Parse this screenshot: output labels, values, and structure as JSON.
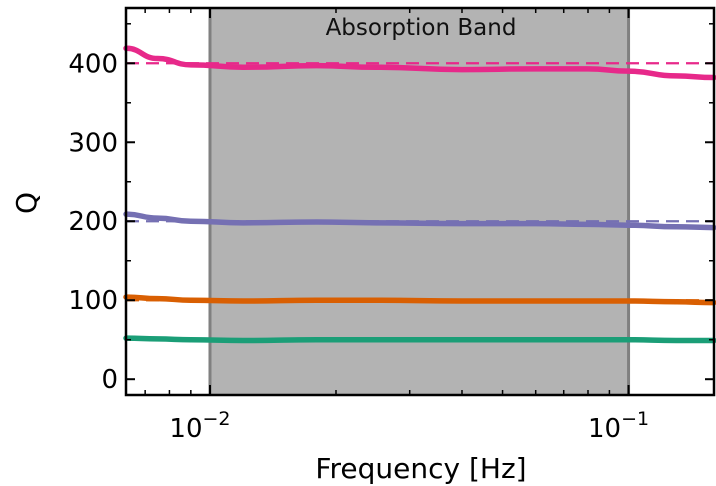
{
  "chart_data": {
    "type": "line",
    "title": "",
    "xlabel": "Frequency [Hz]",
    "ylabel": "Q",
    "xscale": "log",
    "xlim": [
      0.0063,
      0.16
    ],
    "ylim": [
      -20,
      470
    ],
    "xticks": [
      {
        "value": 0.01,
        "base": "10",
        "exp": "−2"
      },
      {
        "value": 0.1,
        "base": "10",
        "exp": "−1"
      }
    ],
    "yticks": [
      {
        "value": 0,
        "label": "0"
      },
      {
        "value": 100,
        "label": "100"
      },
      {
        "value": 200,
        "label": "200"
      },
      {
        "value": 300,
        "label": "300"
      },
      {
        "value": 400,
        "label": "400"
      }
    ],
    "band": {
      "x_start": 0.01,
      "x_end": 0.1,
      "label": "Absorption Band",
      "color": "#b3b3b3"
    },
    "grid": false,
    "series": [
      {
        "color": "#e7298a",
        "target_q": 400,
        "x": [
          0.0063,
          0.0075,
          0.009,
          0.012,
          0.018,
          0.025,
          0.04,
          0.06,
          0.08,
          0.1,
          0.13,
          0.16
        ],
        "values": [
          419,
          406,
          398,
          395,
          397,
          395,
          392,
          393,
          393,
          390,
          384,
          382
        ]
      },
      {
        "color": "#7570b3",
        "target_q": 200,
        "x": [
          0.0063,
          0.0075,
          0.009,
          0.012,
          0.018,
          0.025,
          0.04,
          0.06,
          0.08,
          0.1,
          0.13,
          0.16
        ],
        "values": [
          209,
          204,
          200,
          198,
          199,
          198,
          197,
          197,
          196,
          195,
          193,
          192
        ]
      },
      {
        "color": "#d95f02",
        "target_q": 100,
        "x": [
          0.0063,
          0.0075,
          0.009,
          0.012,
          0.018,
          0.025,
          0.04,
          0.06,
          0.08,
          0.1,
          0.13,
          0.16
        ],
        "values": [
          104,
          102,
          100,
          99,
          100,
          100,
          99,
          99,
          99,
          99,
          98,
          97
        ]
      },
      {
        "color": "#1b9e77",
        "target_q": 50,
        "x": [
          0.0063,
          0.0075,
          0.009,
          0.012,
          0.018,
          0.025,
          0.04,
          0.06,
          0.08,
          0.1,
          0.13,
          0.16
        ],
        "values": [
          52,
          51,
          50,
          49,
          50,
          50,
          50,
          50,
          50,
          50,
          49,
          49
        ]
      }
    ]
  }
}
